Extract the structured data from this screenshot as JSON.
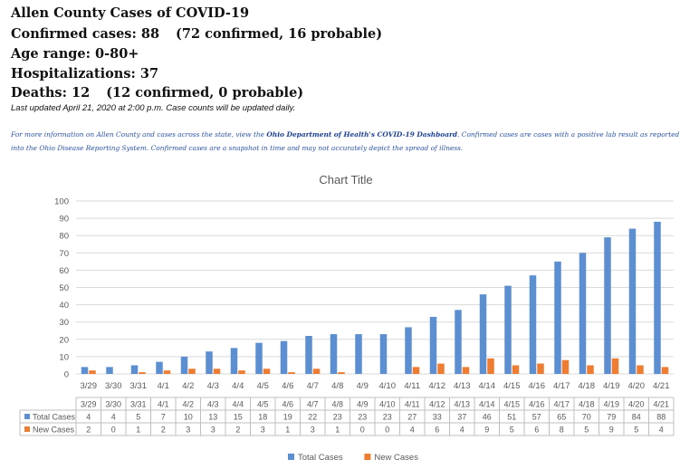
{
  "header": {
    "title": "Allen County Cases of COVID-19",
    "confirmed_label": "Confirmed cases: 88",
    "confirmed_breakdown": "(72 confirmed, 16 probable)",
    "age_range": "Age range: 0-80+",
    "hospitalizations": "Hospitalizations: 37",
    "deaths_label": "Deaths: 12",
    "deaths_breakdown": "(12 confirmed, 0 probable)",
    "last_updated": "Last updated April 21, 2020 at 2:00 p.m. Case counts will be updated daily."
  },
  "info": {
    "lead": "For more information on Allen County and cases across the state, view the ",
    "link": "Ohio Department of Health's COVID-19 Dashboard",
    "rest": ".  Confirmed cases are cases with a positive lab result as reported into the Ohio Disease Reporting System. Confirmed cases are a snapshot in time and may not accurately depict the spread of illness."
  },
  "colors": {
    "total": "#5b8fd1",
    "new": "#ee7d31",
    "grid": "#d9d9d9",
    "axis_text": "#595959"
  },
  "chart_data": {
    "type": "bar",
    "title": "Chart Title",
    "categories": [
      "3/29",
      "3/30",
      "3/31",
      "4/1",
      "4/2",
      "4/3",
      "4/4",
      "4/5",
      "4/6",
      "4/7",
      "4/8",
      "4/9",
      "4/10",
      "4/11",
      "4/12",
      "4/13",
      "4/14",
      "4/15",
      "4/16",
      "4/17",
      "4/18",
      "4/19",
      "4/20",
      "4/21"
    ],
    "series": [
      {
        "name": "Total Cases",
        "values": [
          4,
          4,
          5,
          7,
          10,
          13,
          15,
          18,
          19,
          22,
          23,
          23,
          23,
          27,
          33,
          37,
          46,
          51,
          57,
          65,
          70,
          79,
          84,
          88
        ]
      },
      {
        "name": "New Cases",
        "values": [
          2,
          0,
          1,
          2,
          3,
          3,
          2,
          3,
          1,
          3,
          1,
          0,
          0,
          4,
          6,
          4,
          9,
          5,
          6,
          8,
          5,
          9,
          5,
          4
        ]
      }
    ],
    "ylim": [
      0,
      100
    ],
    "yticks": [
      0,
      10,
      20,
      30,
      40,
      50,
      60,
      70,
      80,
      90,
      100
    ],
    "grid": true,
    "legend": "bottom",
    "data_table": true
  }
}
